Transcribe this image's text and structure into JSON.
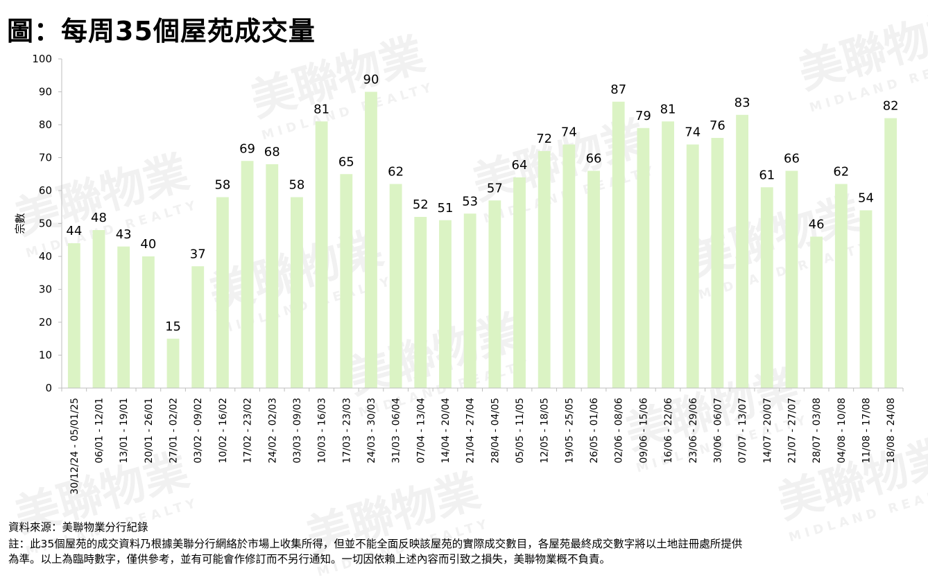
{
  "title": "圖：每周35個屋苑成交量",
  "watermark": "美聯物業",
  "watermark_sub": "MIDLAND REALTY",
  "chart_data": {
    "type": "bar",
    "title": "",
    "xlabel": "",
    "ylabel": "宗數",
    "ylim": [
      0,
      100
    ],
    "yticks": [
      0,
      10,
      20,
      30,
      40,
      50,
      60,
      70,
      80,
      90,
      100
    ],
    "grid": false,
    "bar_color": "#dbf3c4",
    "categories": [
      "30/12/24 - 05/01/25",
      "06/01 - 12/01",
      "13/01 - 19/01",
      "20/01 - 26/01",
      "27/01 - 02/02",
      "03/02 - 09/02",
      "10/02 - 16/02",
      "17/02 - 23/02",
      "24/02 - 02/03",
      "03/03 - 09/03",
      "10/03 - 16/03",
      "17/03 - 23/03",
      "24/03 - 30/03",
      "31/03 - 06/04",
      "07/04 - 13/04",
      "14/04 - 20/04",
      "21/04 - 27/04",
      "28/04 - 04/05",
      "05/05 - 11/05",
      "12/05 - 18/05",
      "19/05 - 25/05",
      "26/05 - 01/06",
      "02/06 - 08/06",
      "09/06 - 15/06",
      "16/06 - 22/06",
      "23/06 - 29/06",
      "30/06 - 06/07",
      "07/07 - 13/07",
      "14/07 - 20/07",
      "21/07 - 27/07",
      "28/07 - 03/08",
      "04/08 - 10/08",
      "11/08 - 17/08",
      "18/08 - 24/08"
    ],
    "values": [
      44,
      48,
      43,
      40,
      15,
      37,
      58,
      69,
      68,
      58,
      81,
      65,
      90,
      62,
      52,
      51,
      53,
      57,
      64,
      72,
      74,
      66,
      87,
      79,
      81,
      74,
      76,
      83,
      61,
      66,
      46,
      62,
      54,
      82
    ]
  },
  "footer": {
    "source": "資料來源：美聯物業分行紀錄",
    "note_line1": "註：此35個屋苑的成交資料乃根據美聯分行網絡於市場上收集所得，但並不能全面反映該屋苑的實際成交數目，各屋苑最終成交數字將以土地註冊處所提供",
    "note_line2": "為準。以上為臨時數字，僅供參考，並有可能會作修訂而不另行通知。一切因依賴上述內容而引致之損失，美聯物業概不負責。"
  }
}
